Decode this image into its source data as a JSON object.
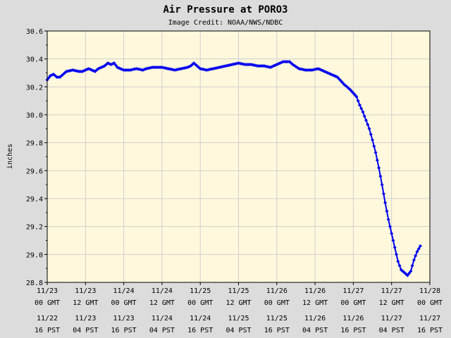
{
  "chart_data": {
    "type": "line",
    "title": "Air Pressure at PORO3",
    "subtitle": "Image Credit: NOAA/NWS/NDBC",
    "ylabel": "inches",
    "ylim": [
      28.8,
      30.6
    ],
    "yticks": [
      "30.6",
      "30.4",
      "30.2",
      "30.0",
      "29.8",
      "29.6",
      "29.4",
      "29.2",
      "29.0",
      "28.8"
    ],
    "grid": true,
    "xlim_hours": [
      0,
      120
    ],
    "xticks": [
      {
        "gmt_date": "11/23",
        "gmt_time": "00 GMT",
        "pst_date": "11/22",
        "pst_time": "16 PST"
      },
      {
        "gmt_date": "11/23",
        "gmt_time": "12 GMT",
        "pst_date": "11/23",
        "pst_time": "04 PST"
      },
      {
        "gmt_date": "11/24",
        "gmt_time": "00 GMT",
        "pst_date": "11/23",
        "pst_time": "16 PST"
      },
      {
        "gmt_date": "11/24",
        "gmt_time": "12 GMT",
        "pst_date": "11/24",
        "pst_time": "04 PST"
      },
      {
        "gmt_date": "11/25",
        "gmt_time": "00 GMT",
        "pst_date": "11/24",
        "pst_time": "16 PST"
      },
      {
        "gmt_date": "11/25",
        "gmt_time": "12 GMT",
        "pst_date": "11/25",
        "pst_time": "04 PST"
      },
      {
        "gmt_date": "11/26",
        "gmt_time": "00 GMT",
        "pst_date": "11/25",
        "pst_time": "16 PST"
      },
      {
        "gmt_date": "11/26",
        "gmt_time": "12 GMT",
        "pst_date": "11/26",
        "pst_time": "04 PST"
      },
      {
        "gmt_date": "11/27",
        "gmt_time": "00 GMT",
        "pst_date": "11/26",
        "pst_time": "16 PST"
      },
      {
        "gmt_date": "11/27",
        "gmt_time": "12 GMT",
        "pst_date": "11/27",
        "pst_time": "04 PST"
      },
      {
        "gmt_date": "11/28",
        "gmt_time": "00 GMT",
        "pst_date": "11/27",
        "pst_time": "16 PST"
      }
    ],
    "series": [
      {
        "color": "#0000ee",
        "points": [
          [
            0,
            30.25
          ],
          [
            1,
            30.28
          ],
          [
            2,
            30.29
          ],
          [
            3,
            30.27
          ],
          [
            4,
            30.27
          ],
          [
            5,
            30.29
          ],
          [
            6,
            30.31
          ],
          [
            8,
            30.32
          ],
          [
            10,
            30.31
          ],
          [
            11,
            30.31
          ],
          [
            13,
            30.33
          ],
          [
            14,
            30.32
          ],
          [
            15,
            30.31
          ],
          [
            16,
            30.33
          ],
          [
            18,
            30.35
          ],
          [
            19,
            30.37
          ],
          [
            20,
            30.36
          ],
          [
            21,
            30.37
          ],
          [
            22,
            30.34
          ],
          [
            24,
            30.32
          ],
          [
            26,
            30.32
          ],
          [
            28,
            30.33
          ],
          [
            30,
            30.32
          ],
          [
            31,
            30.33
          ],
          [
            33,
            30.34
          ],
          [
            36,
            30.34
          ],
          [
            38,
            30.33
          ],
          [
            40,
            30.32
          ],
          [
            42,
            30.33
          ],
          [
            44,
            30.34
          ],
          [
            45,
            30.35
          ],
          [
            46,
            30.37
          ],
          [
            47,
            30.35
          ],
          [
            48,
            30.33
          ],
          [
            50,
            30.32
          ],
          [
            52,
            30.33
          ],
          [
            54,
            30.34
          ],
          [
            56,
            30.35
          ],
          [
            58,
            30.36
          ],
          [
            60,
            30.37
          ],
          [
            62,
            30.36
          ],
          [
            64,
            30.36
          ],
          [
            66,
            30.35
          ],
          [
            68,
            30.35
          ],
          [
            70,
            30.34
          ],
          [
            72,
            30.36
          ],
          [
            74,
            30.38
          ],
          [
            76,
            30.38
          ],
          [
            77,
            30.36
          ],
          [
            79,
            30.33
          ],
          [
            81,
            30.32
          ],
          [
            83,
            30.32
          ],
          [
            85,
            30.33
          ],
          [
            87,
            30.31
          ],
          [
            89,
            30.29
          ],
          [
            91,
            30.27
          ],
          [
            93,
            30.22
          ],
          [
            95,
            30.18
          ],
          [
            97,
            30.13
          ],
          [
            98,
            30.07
          ],
          [
            99,
            30.02
          ],
          [
            100,
            29.96
          ],
          [
            101,
            29.9
          ],
          [
            102,
            29.82
          ],
          [
            103,
            29.73
          ],
          [
            104,
            29.62
          ],
          [
            105,
            29.5
          ],
          [
            106,
            29.37
          ],
          [
            107,
            29.25
          ],
          [
            108,
            29.15
          ],
          [
            109,
            29.05
          ],
          [
            110,
            28.95
          ],
          [
            111,
            28.89
          ],
          [
            112,
            28.87
          ],
          [
            113,
            28.85
          ],
          [
            114,
            28.88
          ],
          [
            115,
            28.96
          ],
          [
            116,
            29.02
          ],
          [
            117,
            29.06
          ]
        ]
      }
    ]
  }
}
